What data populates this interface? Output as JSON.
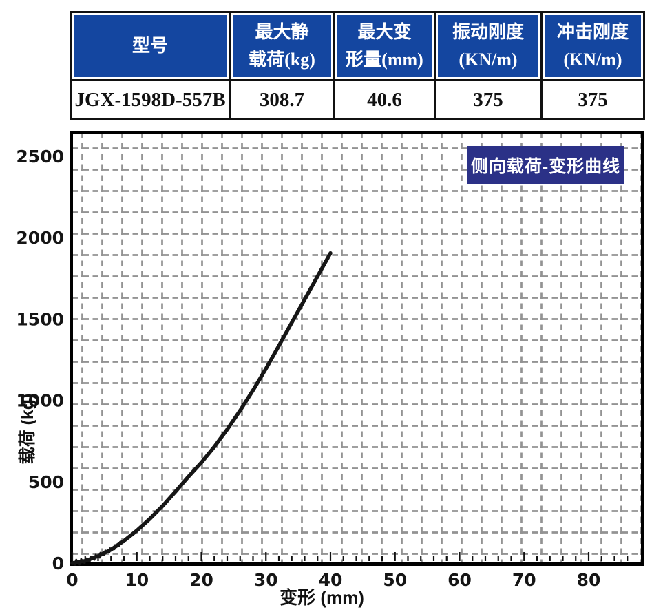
{
  "table": {
    "header_bg": "#1446a0",
    "header_fg": "#ffffff",
    "columns": [
      "型号",
      "最大静\n载荷(kg)",
      "最大变\n形量(mm)",
      "振动刚度\n(KN/m)",
      "冲击刚度\n(KN/m)"
    ],
    "row": [
      "JGX-1598D-557B",
      "308.7",
      "40.6",
      "375",
      "375"
    ]
  },
  "chart_data": {
    "type": "line",
    "title": "侧向载荷-变形曲线",
    "xlabel": "变形 (mm)",
    "ylabel": "载荷 (kg)",
    "xlim": [
      0,
      88
    ],
    "ylim": [
      0,
      2650
    ],
    "x_ticks": [
      0,
      10,
      20,
      30,
      40,
      50,
      60,
      70,
      80
    ],
    "x_minor_step": 2,
    "y_ticks": [
      0,
      500,
      1000,
      1500,
      2000,
      2500
    ],
    "grid": "dashed",
    "legend_position": "top-right-box",
    "series": [
      {
        "name": "侧向载荷-变形曲线",
        "x": [
          0,
          2,
          4,
          6,
          8,
          10,
          12,
          14,
          16,
          18,
          20,
          22,
          24,
          26,
          28,
          30,
          32,
          34,
          36,
          38,
          40
        ],
        "y": [
          0,
          14,
          43,
          83,
          137,
          200,
          272,
          352,
          440,
          532,
          618,
          715,
          822,
          938,
          1062,
          1195,
          1335,
          1478,
          1620,
          1763,
          1905
        ]
      }
    ],
    "colors": {
      "curve": "#161616",
      "grid": "#939393",
      "frame": "#000000",
      "title_bg": "#2b3187",
      "title_fg": "#ffffff"
    }
  }
}
